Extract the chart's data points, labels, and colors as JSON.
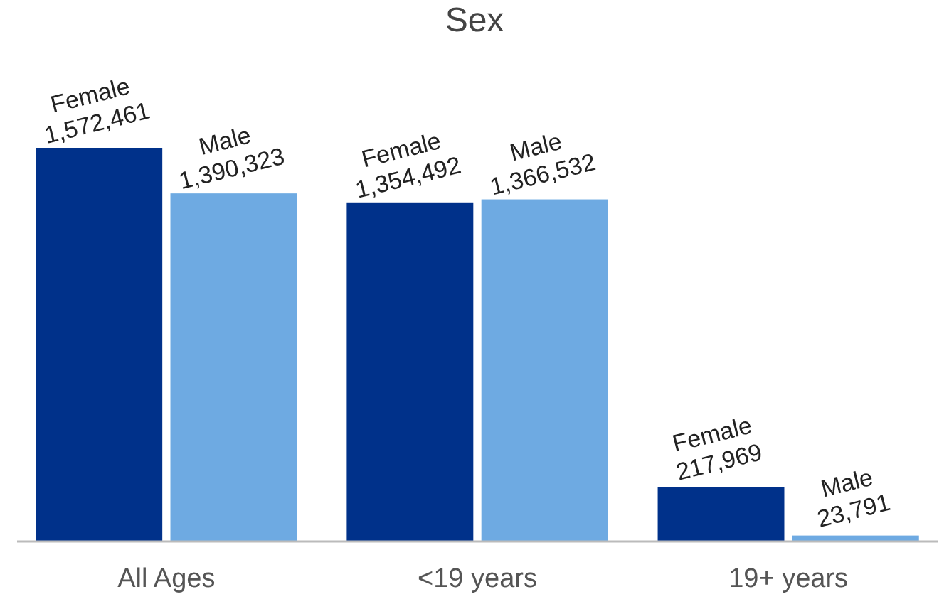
{
  "chart_data": {
    "type": "bar",
    "title": "Sex",
    "categories": [
      "All Ages",
      "<19 years",
      "19+ years"
    ],
    "series": [
      {
        "name": "Female",
        "color": "#00318a",
        "values": [
          1572461,
          1354492,
          217969
        ],
        "value_labels": [
          "1,572,461",
          "1,354,492",
          "217,969"
        ]
      },
      {
        "name": "Male",
        "color": "#6eaae2",
        "values": [
          1390323,
          1366532,
          23791
        ],
        "value_labels": [
          "1,390,323",
          "1,366,532",
          "23,791"
        ]
      }
    ]
  }
}
